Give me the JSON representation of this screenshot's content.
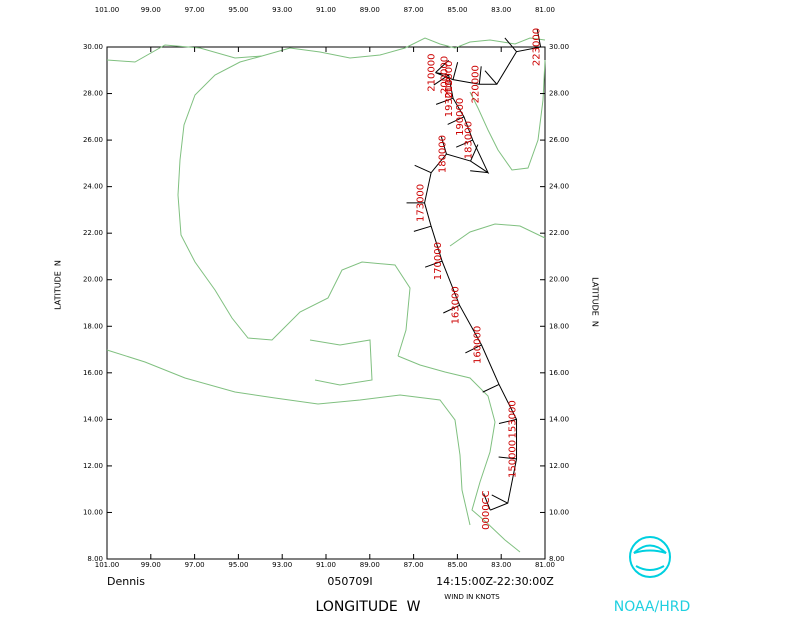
{
  "chart_data": {
    "type": "track",
    "storm": "Dennis",
    "flight_id": "050709I",
    "time_range": "14:15:00Z-22:30:00Z",
    "wind_note": "WIND IN KNOTS",
    "x_label": "LONGITUDE  W",
    "y_label": "LATITUDE  N",
    "logo_text": "NOAA/HRD",
    "xlim": [
      101,
      81
    ],
    "ylim": [
      8,
      30
    ],
    "xticks": [
      {
        "value": 101,
        "label": "101.00"
      },
      {
        "value": 99,
        "label": "99.00"
      },
      {
        "value": 97,
        "label": "97.00"
      },
      {
        "value": 95,
        "label": "95.00"
      },
      {
        "value": 93,
        "label": "93.00"
      },
      {
        "value": 91,
        "label": "91.00"
      },
      {
        "value": 89,
        "label": "89.00"
      },
      {
        "value": 87,
        "label": "87.00"
      },
      {
        "value": 85,
        "label": "85.00"
      },
      {
        "value": 83,
        "label": "83.00"
      },
      {
        "value": 81,
        "label": "81.00"
      }
    ],
    "yticks": [
      {
        "value": 8,
        "label": "8.00"
      },
      {
        "value": 10,
        "label": "10.00"
      },
      {
        "value": 12,
        "label": "12.00"
      },
      {
        "value": 14,
        "label": "14.00"
      },
      {
        "value": 16,
        "label": "16.00"
      },
      {
        "value": 18,
        "label": "18.00"
      },
      {
        "value": 20,
        "label": "20.00"
      },
      {
        "value": 22,
        "label": "22.00"
      },
      {
        "value": 24,
        "label": "24.00"
      },
      {
        "value": 26,
        "label": "26.00"
      },
      {
        "value": 28,
        "label": "28.00"
      },
      {
        "value": 30,
        "label": "30.00"
      }
    ],
    "track_color": "#000000",
    "label_color": "#cc0000",
    "coast_color": "#80c080",
    "x": [
      83.5,
      82.7,
      82.3,
      82.3,
      83.1,
      83.9,
      84.9,
      85.7,
      86.2,
      86.5,
      86.2,
      85.5,
      84.4,
      83.6,
      84.3,
      84.7,
      85.2,
      85.4,
      86.0,
      85.2,
      84.0,
      83.2,
      82.3,
      81.2
    ],
    "values": [
      10.1,
      10.4,
      12.3,
      14.0,
      15.5,
      17.2,
      18.9,
      20.8,
      22.3,
      23.3,
      24.6,
      25.4,
      25.1,
      24.6,
      26.0,
      27.0,
      27.8,
      28.8,
      28.9,
      28.6,
      28.4,
      28.4,
      29.8,
      30.0
    ],
    "point_labels": [
      "0000CC",
      null,
      "150000",
      "153000",
      null,
      "160000",
      "163000",
      "170000",
      null,
      "173000",
      null,
      "180000",
      null,
      null,
      "183000",
      "190000",
      "193000",
      "200000",
      "210000",
      "213000",
      "220000",
      null,
      null,
      "223000"
    ]
  }
}
